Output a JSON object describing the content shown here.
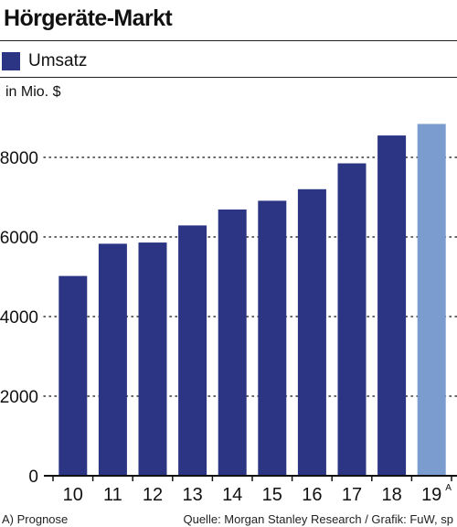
{
  "chart_data": {
    "type": "bar",
    "title": "Hörgeräte-Markt",
    "ylabel": "in Mio. $",
    "categories": [
      "10",
      "11",
      "12",
      "13",
      "14",
      "15",
      "16",
      "17",
      "18",
      "19"
    ],
    "category_markers": [
      "",
      "",
      "",
      "",
      "",
      "",
      "",
      "",
      "",
      "A"
    ],
    "series": [
      {
        "name": "Umsatz",
        "values": [
          5020,
          5830,
          5860,
          6290,
          6690,
          6910,
          7200,
          7850,
          8550,
          8840
        ]
      }
    ],
    "forecast_flags": [
      false,
      false,
      false,
      false,
      false,
      false,
      false,
      false,
      false,
      true
    ],
    "yticks": [
      0,
      2000,
      4000,
      6000,
      8000
    ],
    "ylim": [
      0,
      9000
    ],
    "grid": true,
    "legend_position": "top-left",
    "colors": {
      "actual": "#2b3584",
      "forecast": "#7a9ccf",
      "grid": "#333333"
    }
  },
  "footnote": "A) Prognose",
  "source": "Quelle: Morgan Stanley Research / Grafik: FuW, sp"
}
